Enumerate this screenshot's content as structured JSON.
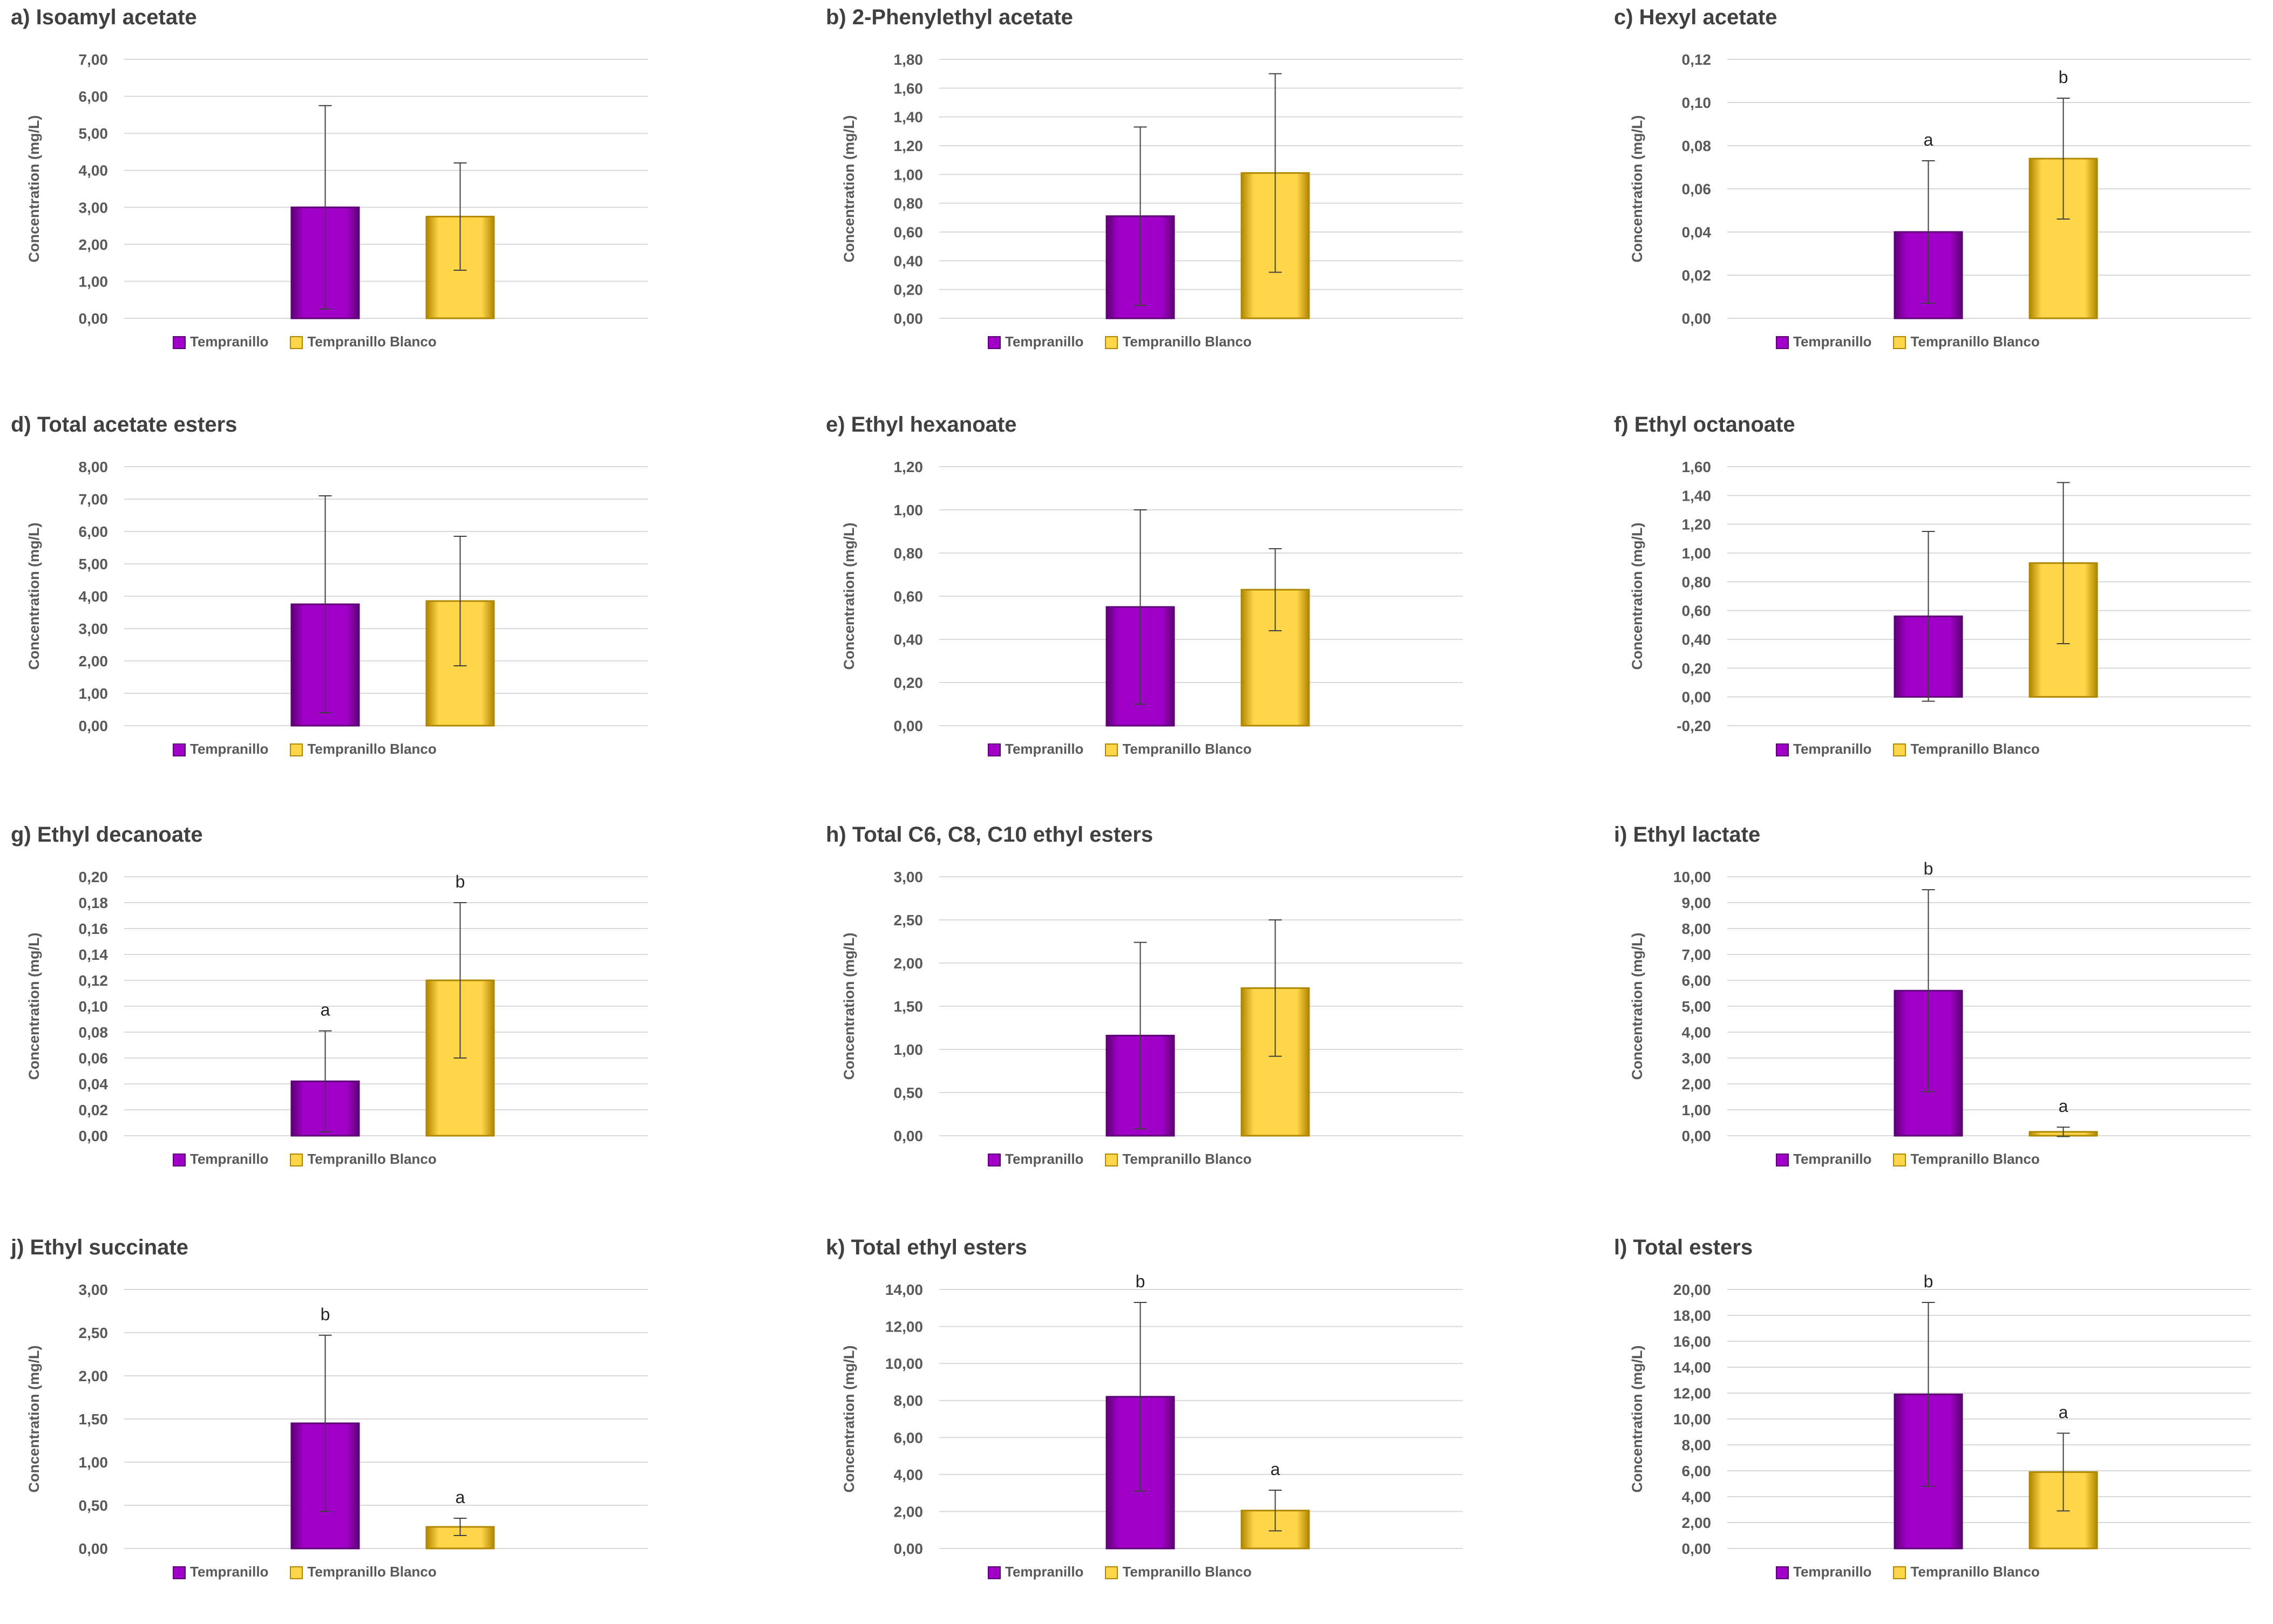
{
  "colors": {
    "tempranillo": "#a100c8",
    "tempranillo_dark": "#5d0075",
    "tempranillo_blanco": "#ffd54a",
    "tempranillo_blanco_dark": "#b08700",
    "grid": "#d9d9d9",
    "text": "#595959",
    "title": "#404040"
  },
  "series_names": [
    "Tempranillo",
    "Tempranillo Blanco"
  ],
  "chart_data": [
    {
      "type": "bar",
      "title": "a) Isoamyl acetate",
      "ylabel": "Concentration (mg/L)",
      "ylim": [
        0,
        7
      ],
      "yticks": [
        "0,00",
        "1,00",
        "2,00",
        "3,00",
        "4,00",
        "5,00",
        "6,00",
        "7,00"
      ],
      "series": [
        {
          "name": "Tempranillo",
          "values": [
            3.0
          ],
          "error": [
            2.75
          ],
          "letter": ""
        },
        {
          "name": "Tempranillo Blanco",
          "values": [
            2.75
          ],
          "error": [
            1.45
          ],
          "letter": ""
        }
      ]
    },
    {
      "type": "bar",
      "title": "b) 2-Phenylethyl acetate",
      "ylabel": "Concentration (mg/L)",
      "ylim": [
        0,
        1.8
      ],
      "yticks": [
        "0,00",
        "0,20",
        "0,40",
        "0,60",
        "0,80",
        "1,00",
        "1,20",
        "1,40",
        "1,60",
        "1,80"
      ],
      "series": [
        {
          "name": "Tempranillo",
          "values": [
            0.71
          ],
          "error": [
            0.62
          ],
          "letter": ""
        },
        {
          "name": "Tempranillo Blanco",
          "values": [
            1.01
          ],
          "error": [
            0.69
          ],
          "letter": ""
        }
      ]
    },
    {
      "type": "bar",
      "title": "c) Hexyl acetate",
      "ylabel": "Concentration (mg/L)",
      "ylim": [
        0,
        0.12
      ],
      "yticks": [
        "0,00",
        "0,02",
        "0,04",
        "0,06",
        "0,08",
        "0,10",
        "0,12"
      ],
      "series": [
        {
          "name": "Tempranillo",
          "values": [
            0.04
          ],
          "error": [
            0.033
          ],
          "letter": "a"
        },
        {
          "name": "Tempranillo Blanco",
          "values": [
            0.074
          ],
          "error": [
            0.028
          ],
          "letter": "b"
        }
      ]
    },
    {
      "type": "bar",
      "title": "d) Total acetate esters",
      "ylabel": "Concentration (mg/L)",
      "ylim": [
        0,
        8
      ],
      "yticks": [
        "0,00",
        "1,00",
        "2,00",
        "3,00",
        "4,00",
        "5,00",
        "6,00",
        "7,00",
        "8,00"
      ],
      "series": [
        {
          "name": "Tempranillo",
          "values": [
            3.75
          ],
          "error": [
            3.35
          ],
          "letter": ""
        },
        {
          "name": "Tempranillo Blanco",
          "values": [
            3.85
          ],
          "error": [
            2.0
          ],
          "letter": ""
        }
      ]
    },
    {
      "type": "bar",
      "title": "e) Ethyl hexanoate",
      "ylabel": "Concentration (mg/L)",
      "ylim": [
        0,
        1.2
      ],
      "yticks": [
        "0,00",
        "0,20",
        "0,40",
        "0,60",
        "0,80",
        "1,00",
        "1,20"
      ],
      "series": [
        {
          "name": "Tempranillo",
          "values": [
            0.55
          ],
          "error": [
            0.45
          ],
          "letter": ""
        },
        {
          "name": "Tempranillo Blanco",
          "values": [
            0.63
          ],
          "error": [
            0.19
          ],
          "letter": ""
        }
      ]
    },
    {
      "type": "bar",
      "title": "f) Ethyl octanoate",
      "ylabel": "Concentration (mg/L)",
      "ylim": [
        -0.2,
        1.6
      ],
      "yticks": [
        "-0,20",
        "0,00",
        "0,20",
        "0,40",
        "0,60",
        "0,80",
        "1,00",
        "1,20",
        "1,40",
        "1,60"
      ],
      "series": [
        {
          "name": "Tempranillo",
          "values": [
            0.56
          ],
          "error": [
            0.59
          ],
          "letter": ""
        },
        {
          "name": "Tempranillo Blanco",
          "values": [
            0.93
          ],
          "error": [
            0.56
          ],
          "letter": ""
        }
      ]
    },
    {
      "type": "bar",
      "title": "g) Ethyl decanoate",
      "ylabel": "Concentration (mg/L)",
      "ylim": [
        0,
        0.2
      ],
      "yticks": [
        "0,00",
        "0,02",
        "0,04",
        "0,06",
        "0,08",
        "0,10",
        "0,12",
        "0,14",
        "0,16",
        "0,18",
        "0,20"
      ],
      "series": [
        {
          "name": "Tempranillo",
          "values": [
            0.042
          ],
          "error": [
            0.039
          ],
          "letter": "a"
        },
        {
          "name": "Tempranillo Blanco",
          "values": [
            0.12
          ],
          "error": [
            0.06
          ],
          "letter": "b"
        }
      ]
    },
    {
      "type": "bar",
      "title": "h) Total C6, C8, C10 ethyl esters",
      "ylabel": "Concentration (mg/L)",
      "ylim": [
        0,
        3
      ],
      "yticks": [
        "0,00",
        "0,50",
        "1,00",
        "1,50",
        "2,00",
        "2,50",
        "3,00"
      ],
      "series": [
        {
          "name": "Tempranillo",
          "values": [
            1.16
          ],
          "error": [
            1.08
          ],
          "letter": ""
        },
        {
          "name": "Tempranillo Blanco",
          "values": [
            1.71
          ],
          "error": [
            0.79
          ],
          "letter": ""
        }
      ]
    },
    {
      "type": "bar",
      "title": "i) Ethyl lactate",
      "ylabel": "Concentration (mg/L)",
      "ylim": [
        0,
        10
      ],
      "yticks": [
        "0,00",
        "1,00",
        "2,00",
        "3,00",
        "4,00",
        "5,00",
        "6,00",
        "7,00",
        "8,00",
        "9,00",
        "10,00"
      ],
      "series": [
        {
          "name": "Tempranillo",
          "values": [
            5.6
          ],
          "error": [
            3.9
          ],
          "letter": "b"
        },
        {
          "name": "Tempranillo Blanco",
          "values": [
            0.15
          ],
          "error": [
            0.18
          ],
          "letter": "a"
        }
      ]
    },
    {
      "type": "bar",
      "title": "j) Ethyl succinate",
      "ylabel": "Concentration (mg/L)",
      "ylim": [
        0,
        3
      ],
      "yticks": [
        "0,00",
        "0,50",
        "1,00",
        "1,50",
        "2,00",
        "2,50",
        "3,00"
      ],
      "series": [
        {
          "name": "Tempranillo",
          "values": [
            1.45
          ],
          "error": [
            1.02
          ],
          "letter": "b"
        },
        {
          "name": "Tempranillo Blanco",
          "values": [
            0.25
          ],
          "error": [
            0.1
          ],
          "letter": "a"
        }
      ]
    },
    {
      "type": "bar",
      "title": "k) Total ethyl esters",
      "ylabel": "Concentration (mg/L)",
      "ylim": [
        0,
        14
      ],
      "yticks": [
        "0,00",
        "2,00",
        "4,00",
        "6,00",
        "8,00",
        "10,00",
        "12,00",
        "14,00"
      ],
      "series": [
        {
          "name": "Tempranillo",
          "values": [
            8.2
          ],
          "error": [
            5.1
          ],
          "letter": "b"
        },
        {
          "name": "Tempranillo Blanco",
          "values": [
            2.05
          ],
          "error": [
            1.1
          ],
          "letter": "a"
        }
      ]
    },
    {
      "type": "bar",
      "title": "l) Total esters",
      "ylabel": "Concentration (mg/L)",
      "ylim": [
        0,
        20
      ],
      "yticks": [
        "0,00",
        "2,00",
        "4,00",
        "6,00",
        "8,00",
        "10,00",
        "12,00",
        "14,00",
        "16,00",
        "18,00",
        "20,00"
      ],
      "series": [
        {
          "name": "Tempranillo",
          "values": [
            11.9
          ],
          "error": [
            7.1
          ],
          "letter": "b"
        },
        {
          "name": "Tempranillo Blanco",
          "values": [
            5.9
          ],
          "error": [
            3.0
          ],
          "letter": "a"
        }
      ]
    }
  ]
}
